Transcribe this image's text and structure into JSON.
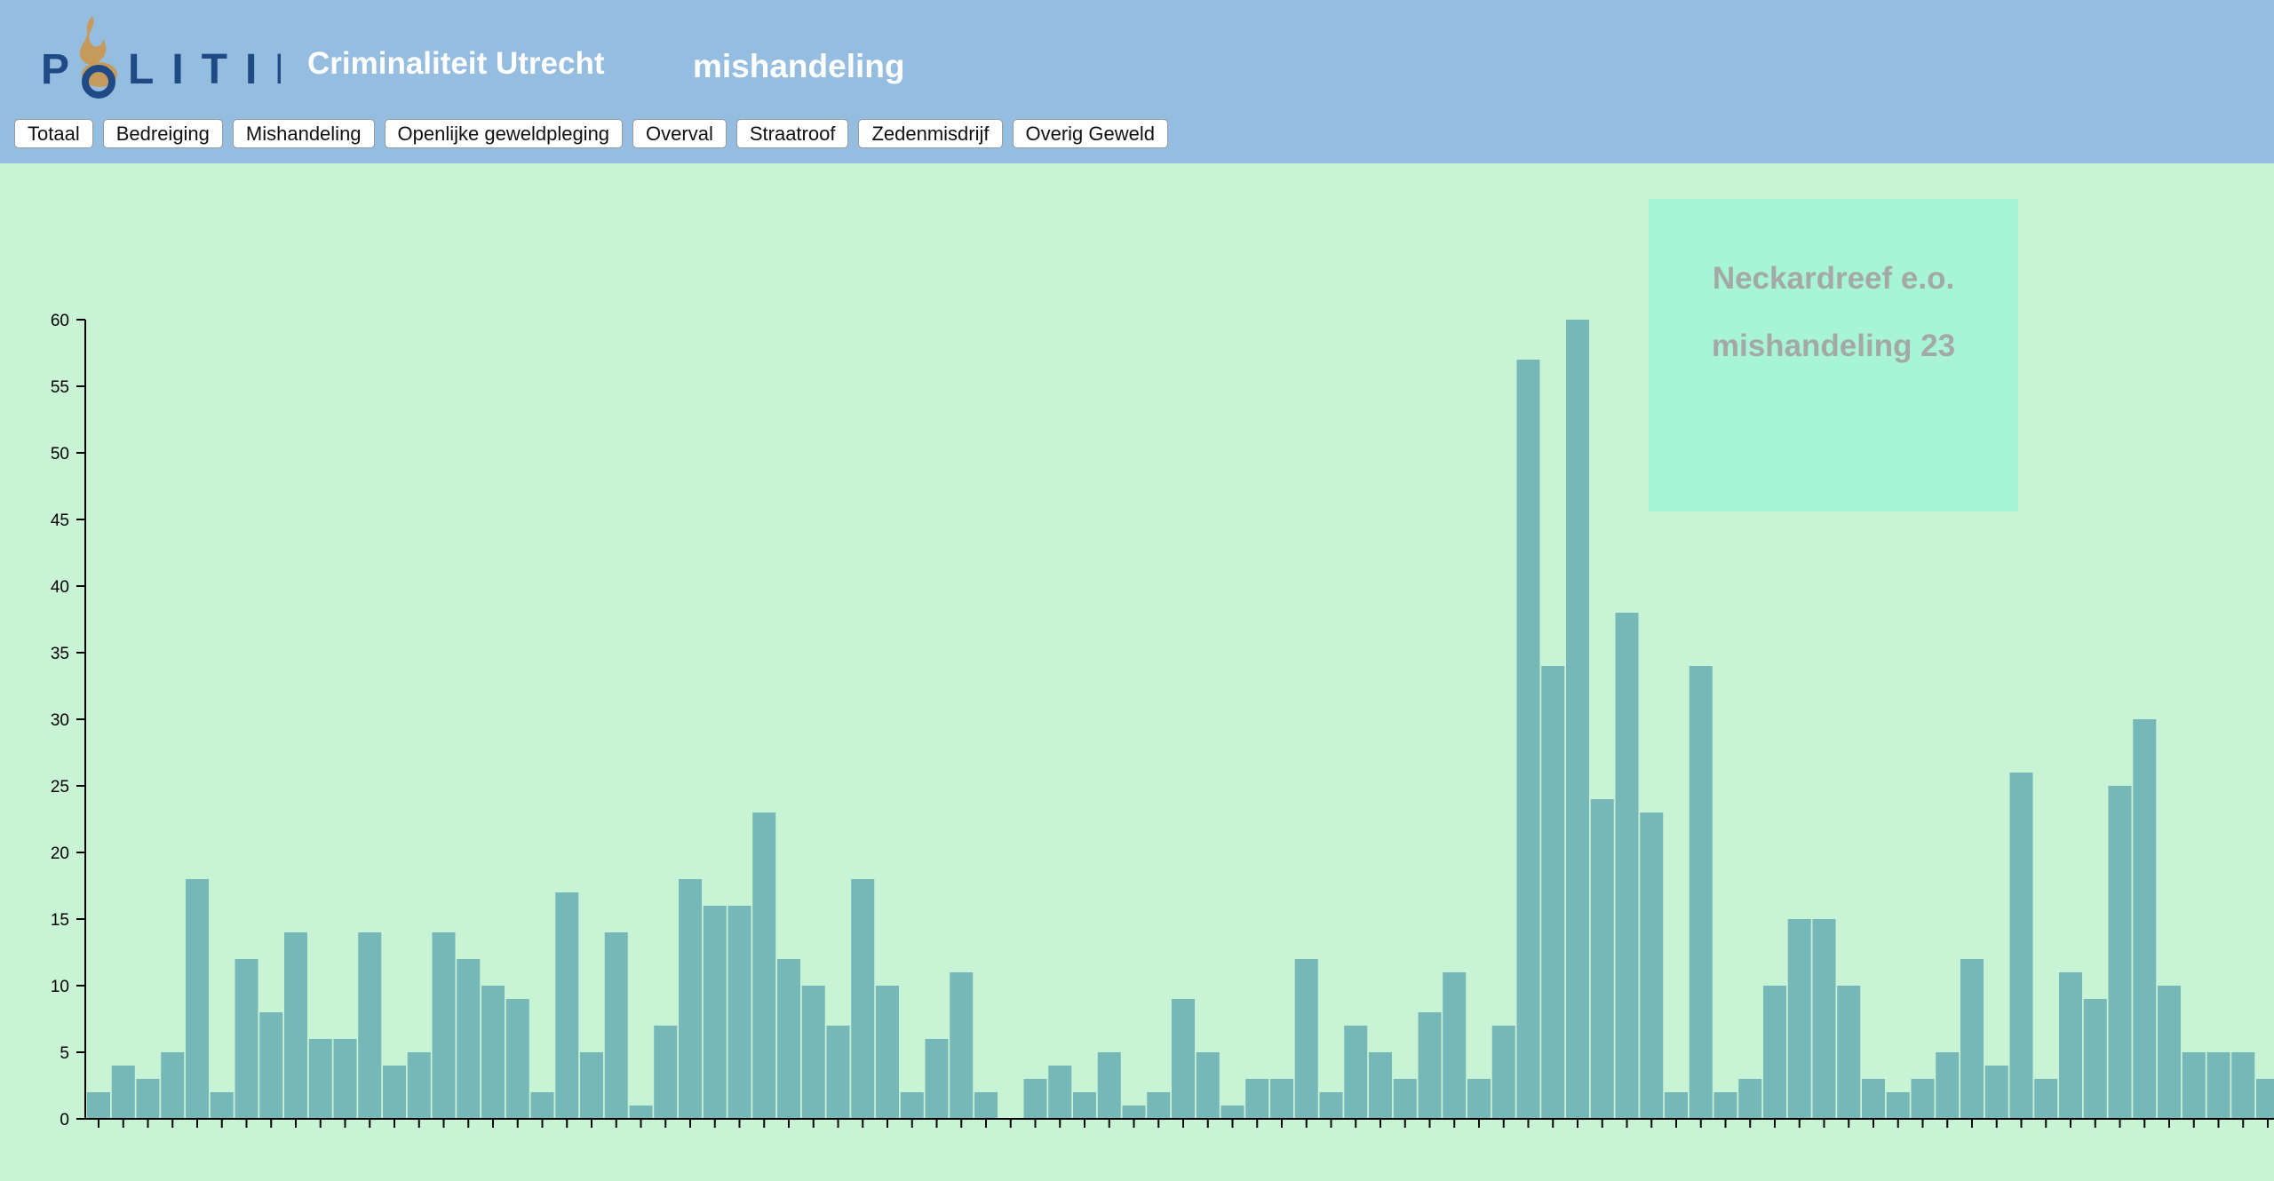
{
  "header": {
    "logo_text": "POLITIE",
    "app_title": "Criminaliteit Utrecht",
    "category_title": "mishandeling",
    "background": "#94bddf"
  },
  "nav": {
    "buttons": [
      "Totaal",
      "Bedreiging",
      "Mishandeling",
      "Openlijke geweldpleging",
      "Overval",
      "Straatroof",
      "Zedenmisdrijf",
      "Overig Geweld"
    ]
  },
  "tooltip": {
    "location": "Neckardreef e.o.",
    "value_text": "mishandeling 23"
  },
  "colors": {
    "background": "#c9f3d5",
    "bar": "#76b8b8",
    "tooltip_bg": "#a7f4d7",
    "logo_blue": "#1f4a85",
    "logo_gold": "#c69a5b"
  },
  "chart_data": {
    "type": "bar",
    "title": "",
    "xlabel": "",
    "ylabel": "",
    "ylim": [
      0,
      60
    ],
    "yticks": [
      0,
      5,
      10,
      15,
      20,
      25,
      30,
      35,
      40,
      45,
      50,
      55,
      60
    ],
    "values": [
      2,
      4,
      3,
      5,
      18,
      2,
      12,
      8,
      14,
      6,
      6,
      14,
      4,
      5,
      14,
      12,
      10,
      9,
      2,
      17,
      5,
      14,
      1,
      7,
      18,
      16,
      16,
      23,
      12,
      10,
      7,
      18,
      10,
      2,
      6,
      11,
      2,
      0,
      3,
      4,
      2,
      5,
      1,
      2,
      9,
      5,
      1,
      3,
      3,
      12,
      2,
      7,
      5,
      3,
      8,
      11,
      3,
      7,
      57,
      34,
      60,
      24,
      38,
      23,
      2,
      34,
      2,
      3,
      10,
      15,
      15,
      10,
      3,
      2,
      3,
      5,
      12,
      4,
      26,
      3,
      11,
      9,
      25,
      30,
      10,
      5,
      5,
      5,
      3
    ]
  }
}
